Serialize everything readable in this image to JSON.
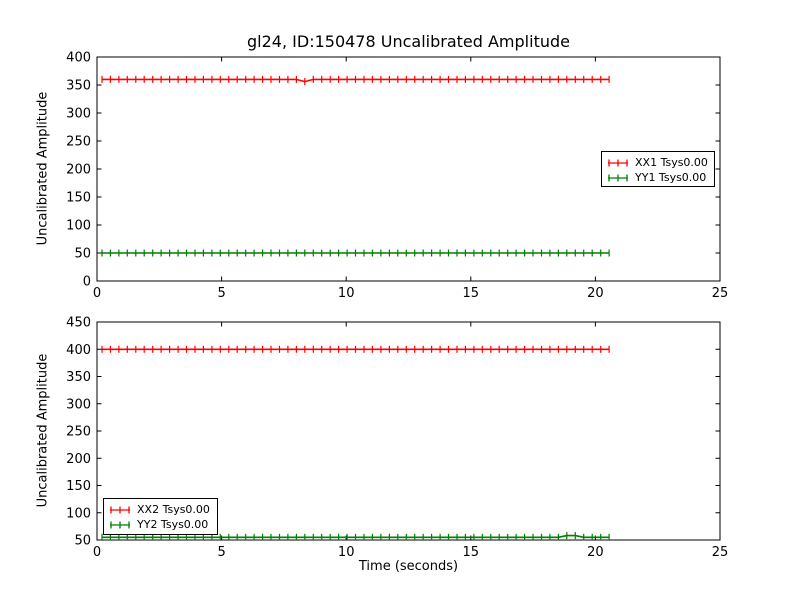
{
  "chart_data": [
    {
      "type": "line",
      "title": "gl24, ID:150478 Uncalibrated Amplitude",
      "ylabel": "Uncalibrated Amplitude",
      "xlabel": "",
      "xlim": [
        0,
        25
      ],
      "ylim": [
        0,
        400
      ],
      "xticks": [
        0,
        5,
        10,
        15,
        20,
        25
      ],
      "yticks": [
        0,
        50,
        100,
        150,
        200,
        250,
        300,
        350,
        400
      ],
      "grid": false,
      "legend_position": "right-center",
      "series": [
        {
          "label": "XX1 Tsys0.00",
          "color": "#ff0000",
          "marker": "errorbar-tick",
          "x_start": 0.2,
          "x_end": 20.55,
          "n_points": 61,
          "y_value": 360,
          "anomalies": [
            {
              "x": 8.35,
              "y": 356
            }
          ]
        },
        {
          "label": "YY1 Tsys0.00",
          "color": "#007f00",
          "marker": "errorbar-tick",
          "x_start": 0.2,
          "x_end": 20.55,
          "n_points": 61,
          "y_value": 50,
          "anomalies": []
        }
      ]
    },
    {
      "type": "line",
      "title": "",
      "ylabel": "Uncalibrated Amplitude",
      "xlabel": "Time (seconds)",
      "xlim": [
        0,
        25
      ],
      "ylim": [
        50,
        450
      ],
      "xticks": [
        0,
        5,
        10,
        15,
        20,
        25
      ],
      "yticks": [
        50,
        100,
        150,
        200,
        250,
        300,
        350,
        400,
        450
      ],
      "grid": false,
      "legend_position": "left-bottom",
      "series": [
        {
          "label": "XX2 Tsys0.00",
          "color": "#ff0000",
          "marker": "errorbar-tick",
          "x_start": 0.2,
          "x_end": 20.55,
          "n_points": 61,
          "y_value": 400,
          "anomalies": []
        },
        {
          "label": "YY2 Tsys0.00",
          "color": "#007f00",
          "marker": "errorbar-tick",
          "x_start": 0.2,
          "x_end": 20.55,
          "n_points": 61,
          "y_value": 55,
          "anomalies": [
            {
              "x": 18.9,
              "y": 58
            },
            {
              "x": 19.2,
              "y": 58
            }
          ]
        }
      ]
    }
  ],
  "colors": {
    "axis": "#000000",
    "background": "#ffffff",
    "series_red": "#ff0000",
    "series_green": "#007f00"
  }
}
